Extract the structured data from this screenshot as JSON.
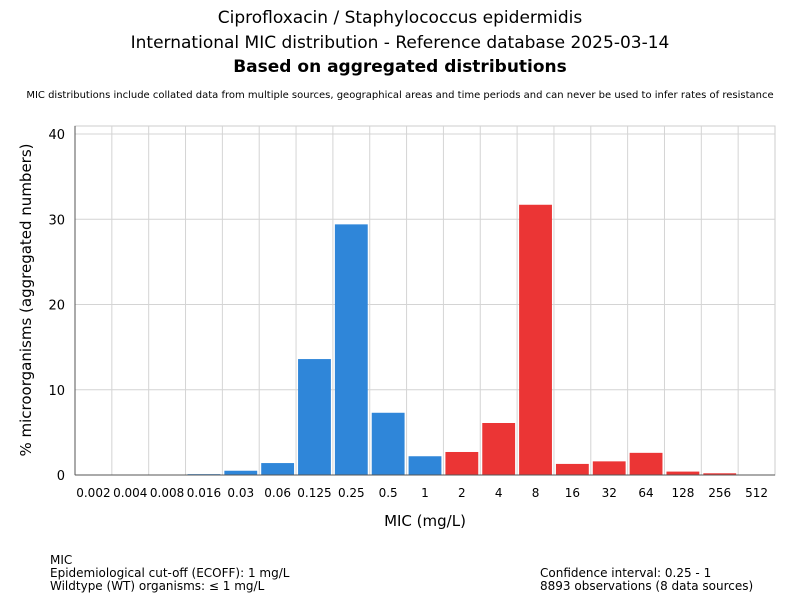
{
  "chart_data": {
    "type": "bar",
    "title": [
      "Ciprofloxacin / Staphylococcus epidermidis",
      "International MIC distribution - Reference database 2025-03-14",
      "Based on aggregated distributions"
    ],
    "subtitle": "MIC distributions include collated data from multiple sources, geographical areas and time periods and can never be used to infer rates of resistance",
    "xlabel": "MIC (mg/L)",
    "ylabel": "% microorganisms (aggregated numbers)",
    "ylim": [
      0,
      40
    ],
    "yticks": [
      0,
      10,
      20,
      30,
      40
    ],
    "grid": true,
    "categories": [
      "0.002",
      "0.004",
      "0.008",
      "0.016",
      "0.03",
      "0.06",
      "0.125",
      "0.25",
      "0.5",
      "1",
      "2",
      "4",
      "8",
      "16",
      "32",
      "64",
      "128",
      "256",
      "512"
    ],
    "values": [
      0,
      0,
      0,
      0.1,
      0.5,
      1.4,
      13.6,
      29.4,
      7.3,
      2.2,
      2.7,
      6.1,
      31.7,
      1.3,
      1.6,
      2.6,
      0.4,
      0.2,
      0
    ],
    "colors": {
      "wildtype": "#2f86d9",
      "non_wildtype": "#eb3535"
    },
    "ecoff_index": 9
  },
  "footer": {
    "left": [
      "MIC",
      "Epidemiological cut-off (ECOFF): 1 mg/L",
      "Wildtype (WT) organisms: ≤ 1 mg/L"
    ],
    "right": [
      "Confidence interval: 0.25 - 1",
      "8893 observations (8 data sources)"
    ]
  }
}
